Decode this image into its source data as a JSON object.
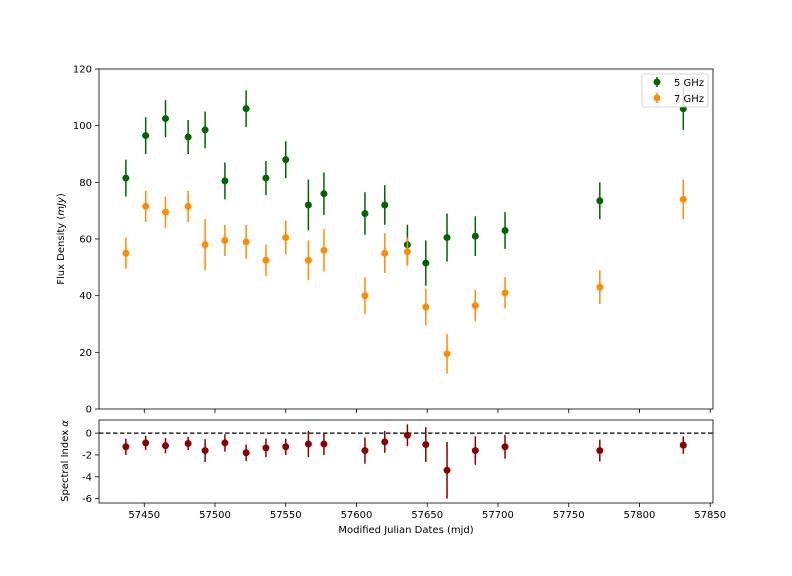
{
  "chart_data": [
    {
      "type": "scatter",
      "ylabel": "Flux Density (mJy)",
      "ylabel_main": "Flux Density ",
      "ylabel_unit": "mJy",
      "xlim": [
        57418,
        57852
      ],
      "ylim": [
        0,
        120
      ],
      "yticks": [
        "0",
        "20",
        "40",
        "60",
        "80",
        "100",
        "120"
      ],
      "legend": {
        "position": "top-right",
        "entries": [
          "5 GHz",
          "7 GHz"
        ]
      },
      "series": [
        {
          "name": "5 GHz",
          "color": "#006400",
          "points": [
            {
              "x": 57437,
              "y": 81.5,
              "err": 6.5
            },
            {
              "x": 57451,
              "y": 96.5,
              "err": 6.5
            },
            {
              "x": 57465,
              "y": 102.5,
              "err": 6.5
            },
            {
              "x": 57481,
              "y": 96,
              "err": 6
            },
            {
              "x": 57493,
              "y": 98.5,
              "err": 6.5
            },
            {
              "x": 57507,
              "y": 80.5,
              "err": 6.5
            },
            {
              "x": 57522,
              "y": 106,
              "err": 6.5
            },
            {
              "x": 57536,
              "y": 81.5,
              "err": 6
            },
            {
              "x": 57550,
              "y": 88,
              "err": 6.5
            },
            {
              "x": 57566,
              "y": 72,
              "err": 9
            },
            {
              "x": 57577,
              "y": 76,
              "err": 7.5
            },
            {
              "x": 57606,
              "y": 69,
              "err": 7.5
            },
            {
              "x": 57620,
              "y": 72,
              "err": 7
            },
            {
              "x": 57636,
              "y": 58,
              "err": 7
            },
            {
              "x": 57649,
              "y": 51.5,
              "err": 8
            },
            {
              "x": 57664,
              "y": 60.5,
              "err": 8.5
            },
            {
              "x": 57684,
              "y": 61,
              "err": 7
            },
            {
              "x": 57705,
              "y": 63,
              "err": 6.5
            },
            {
              "x": 57772,
              "y": 73.5,
              "err": 6.5
            },
            {
              "x": 57831,
              "y": 106,
              "err": 7.5
            }
          ]
        },
        {
          "name": "7 GHz",
          "color": "#ff8c00",
          "points": [
            {
              "x": 57437,
              "y": 55,
              "err": 5.5
            },
            {
              "x": 57451,
              "y": 71.5,
              "err": 5.5
            },
            {
              "x": 57465,
              "y": 69.5,
              "err": 5.5
            },
            {
              "x": 57481,
              "y": 71.5,
              "err": 5.5
            },
            {
              "x": 57493,
              "y": 58,
              "err": 9
            },
            {
              "x": 57507,
              "y": 59.5,
              "err": 5.5
            },
            {
              "x": 57522,
              "y": 59,
              "err": 6
            },
            {
              "x": 57536,
              "y": 52.5,
              "err": 5.5
            },
            {
              "x": 57550,
              "y": 60.5,
              "err": 6
            },
            {
              "x": 57566,
              "y": 52.5,
              "err": 7
            },
            {
              "x": 57577,
              "y": 56,
              "err": 7.5
            },
            {
              "x": 57606,
              "y": 40,
              "err": 6.5
            },
            {
              "x": 57620,
              "y": 55,
              "err": 7
            },
            {
              "x": 57636,
              "y": 55.5,
              "err": 5
            },
            {
              "x": 57649,
              "y": 36,
              "err": 6.5
            },
            {
              "x": 57664,
              "y": 19.5,
              "err": 7
            },
            {
              "x": 57684,
              "y": 36.5,
              "err": 5.5
            },
            {
              "x": 57705,
              "y": 41,
              "err": 5.5
            },
            {
              "x": 57772,
              "y": 43,
              "err": 6
            },
            {
              "x": 57831,
              "y": 74,
              "err": 7
            }
          ]
        }
      ]
    },
    {
      "type": "scatter",
      "xlabel": "Modified Julian Dates (mjd)",
      "ylabel": "Spectral Index α",
      "ylabel_main": "Spectral Index ",
      "ylabel_symbol": "α",
      "xlim": [
        57418,
        57852
      ],
      "ylim": [
        -6.4,
        1.2
      ],
      "xticks": [
        "57450",
        "57500",
        "57550",
        "57600",
        "57650",
        "57700",
        "57750",
        "57800",
        "57850"
      ],
      "yticks": [
        "-6",
        "-4",
        "-2",
        "0"
      ],
      "reference_line": {
        "y": 0,
        "style": "dashed"
      },
      "series": [
        {
          "color": "#8b0000",
          "points": [
            {
              "x": 57437,
              "y": -1.25,
              "err": 0.75
            },
            {
              "x": 57451,
              "y": -0.9,
              "err": 0.65
            },
            {
              "x": 57465,
              "y": -1.15,
              "err": 0.7
            },
            {
              "x": 57481,
              "y": -0.95,
              "err": 0.6
            },
            {
              "x": 57493,
              "y": -1.6,
              "err": 1.05
            },
            {
              "x": 57507,
              "y": -0.9,
              "err": 0.8
            },
            {
              "x": 57522,
              "y": -1.8,
              "err": 0.75
            },
            {
              "x": 57536,
              "y": -1.35,
              "err": 0.85
            },
            {
              "x": 57550,
              "y": -1.25,
              "err": 0.75
            },
            {
              "x": 57566,
              "y": -1,
              "err": 1.2
            },
            {
              "x": 57577,
              "y": -1,
              "err": 1
            },
            {
              "x": 57606,
              "y": -1.6,
              "err": 1.2
            },
            {
              "x": 57620,
              "y": -0.8,
              "err": 1
            },
            {
              "x": 57636,
              "y": -0.2,
              "err": 1
            },
            {
              "x": 57649,
              "y": -1.05,
              "err": 1.6
            },
            {
              "x": 57664,
              "y": -3.4,
              "err": 2.6
            },
            {
              "x": 57684,
              "y": -1.6,
              "err": 1.3
            },
            {
              "x": 57705,
              "y": -1.25,
              "err": 1.1
            },
            {
              "x": 57772,
              "y": -1.6,
              "err": 1
            },
            {
              "x": 57831,
              "y": -1.1,
              "err": 0.8
            }
          ]
        }
      ]
    }
  ]
}
